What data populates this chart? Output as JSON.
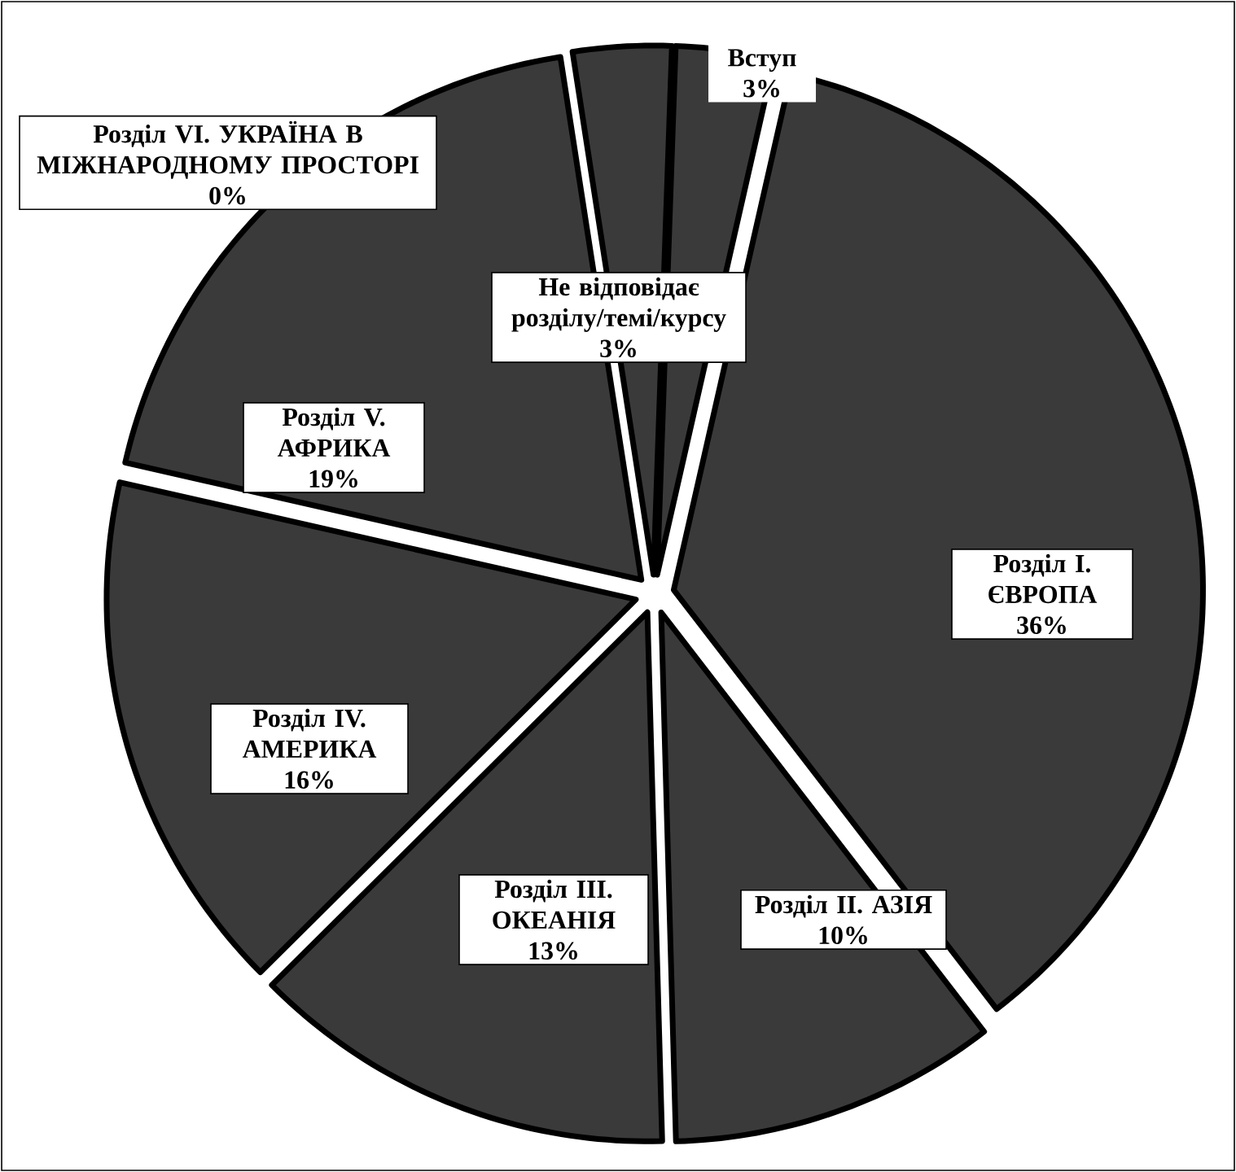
{
  "chart_data": {
    "type": "pie",
    "categories": [
      "Вступ",
      "Розділ I. ЄВРОПА",
      "Розділ II. АЗІЯ",
      "Розділ III. ОКЕАНІЯ",
      "Розділ IV. АМЕРИКА",
      "Розділ V. АФРИКА",
      "Розділ VI. УКРАЇНА В МІЖНАРОДНОМУ ПРОСТОРІ",
      "Не відповідає розділу/темі/курсу"
    ],
    "values": [
      3,
      36,
      10,
      13,
      16,
      19,
      0,
      3
    ],
    "value_labels": [
      "3%",
      "36%",
      "10%",
      "13%",
      "16%",
      "19%",
      "0%",
      "3%"
    ],
    "colors": [
      "#3a3a3a",
      "#3a3a3a",
      "#3a3a3a",
      "#3a3a3a",
      "#3a3a3a",
      "#3a3a3a",
      "#3a3a3a",
      "#3a3a3a"
    ]
  }
}
